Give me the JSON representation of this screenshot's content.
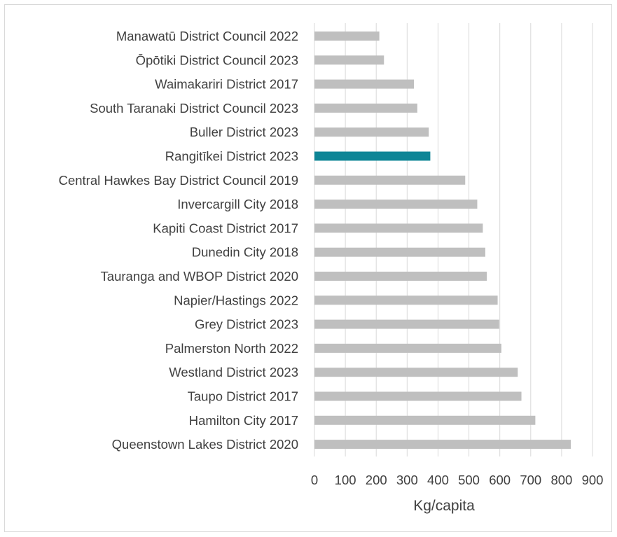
{
  "chart_data": {
    "type": "bar",
    "orientation": "horizontal",
    "title": "",
    "xlabel": "Kg/capita",
    "ylabel": "",
    "xlim": [
      0,
      900
    ],
    "xticks": [
      0,
      100,
      200,
      300,
      400,
      500,
      600,
      700,
      800,
      900
    ],
    "grid": "vertical",
    "legend": "none",
    "colors": {
      "default": "#bfbfbf",
      "highlight": "#0e8596",
      "grid": "#d9d9d9",
      "text": "#404040"
    },
    "highlight_category": "Rangitīkei District 2023",
    "categories": [
      "Manawatū District Council 2022",
      "Ōpōtiki District Council 2023",
      "Waimakariri District 2017",
      "South Taranaki District Council 2023",
      "Buller District 2023",
      "Rangitīkei District 2023",
      "Central Hawkes Bay District Council 2019",
      "Invercargill City 2018",
      "Kapiti Coast District 2017",
      "Dunedin City 2018",
      "Tauranga and WBOP District 2020",
      "Napier/Hastings 2022",
      "Grey District 2023",
      "Palmerston North 2022",
      "Westland District 2023",
      "Taupo District 2017",
      "Hamilton City 2017",
      "Queenstown Lakes District 2020"
    ],
    "values": [
      210,
      225,
      322,
      333,
      370,
      375,
      488,
      527,
      545,
      553,
      558,
      593,
      598,
      605,
      658,
      670,
      715,
      830
    ]
  }
}
